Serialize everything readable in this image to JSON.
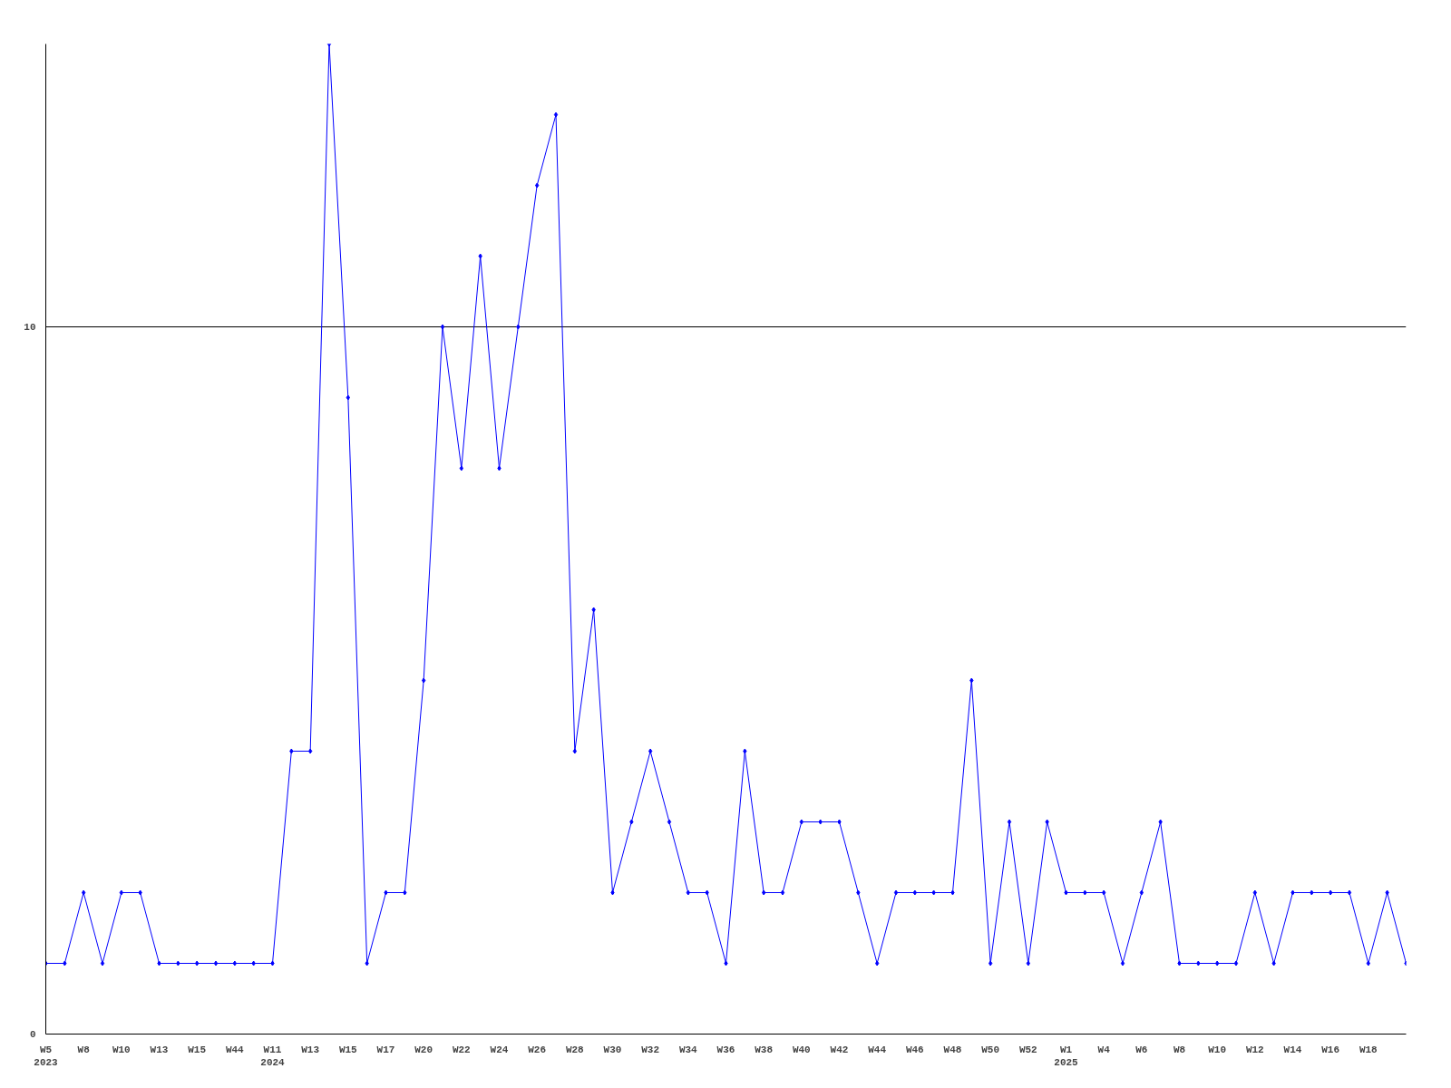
{
  "chart_data": {
    "type": "line",
    "categories": [
      "W5\n2023",
      null,
      "W8",
      null,
      "W10",
      null,
      "W13",
      null,
      "W15",
      null,
      "W44",
      null,
      "W11\n2024",
      null,
      "W13",
      null,
      "W15",
      null,
      "W17",
      null,
      "W20",
      null,
      "W22",
      null,
      "W24",
      null,
      "W26",
      null,
      "W28",
      null,
      "W30",
      null,
      "W32",
      null,
      "W34",
      null,
      "W36",
      null,
      "W38",
      null,
      "W40",
      null,
      "W42",
      null,
      "W44",
      null,
      "W46",
      null,
      "W48",
      null,
      "W50",
      null,
      "W52",
      null,
      "W1\n2025",
      null,
      "W4",
      null,
      "W6",
      null,
      "W8",
      null,
      "W10",
      null,
      "W12",
      null,
      "W14",
      null,
      "W16",
      null,
      "W18",
      null,
      null
    ],
    "series": [
      {
        "color": "#0000ff",
        "values": [
          1,
          1,
          2,
          1,
          2,
          2,
          1,
          1,
          1,
          1,
          1,
          1,
          1,
          4,
          4,
          14,
          9,
          1,
          2,
          2,
          5,
          10,
          8,
          11,
          8,
          10,
          12,
          13,
          4,
          6,
          2,
          3,
          4,
          3,
          2,
          2,
          1,
          4,
          2,
          2,
          3,
          3,
          3,
          2,
          1,
          2,
          2,
          2,
          2,
          5,
          1,
          3,
          1,
          3,
          2,
          2,
          2,
          1,
          2,
          3,
          1,
          1,
          1,
          1,
          2,
          1,
          2,
          2,
          2,
          2,
          1,
          2,
          1
        ]
      }
    ],
    "ylim": [
      0,
      14
    ],
    "yticks": [
      0,
      10
    ],
    "grid": "y",
    "marker": "diamond",
    "line_style": "solid"
  }
}
